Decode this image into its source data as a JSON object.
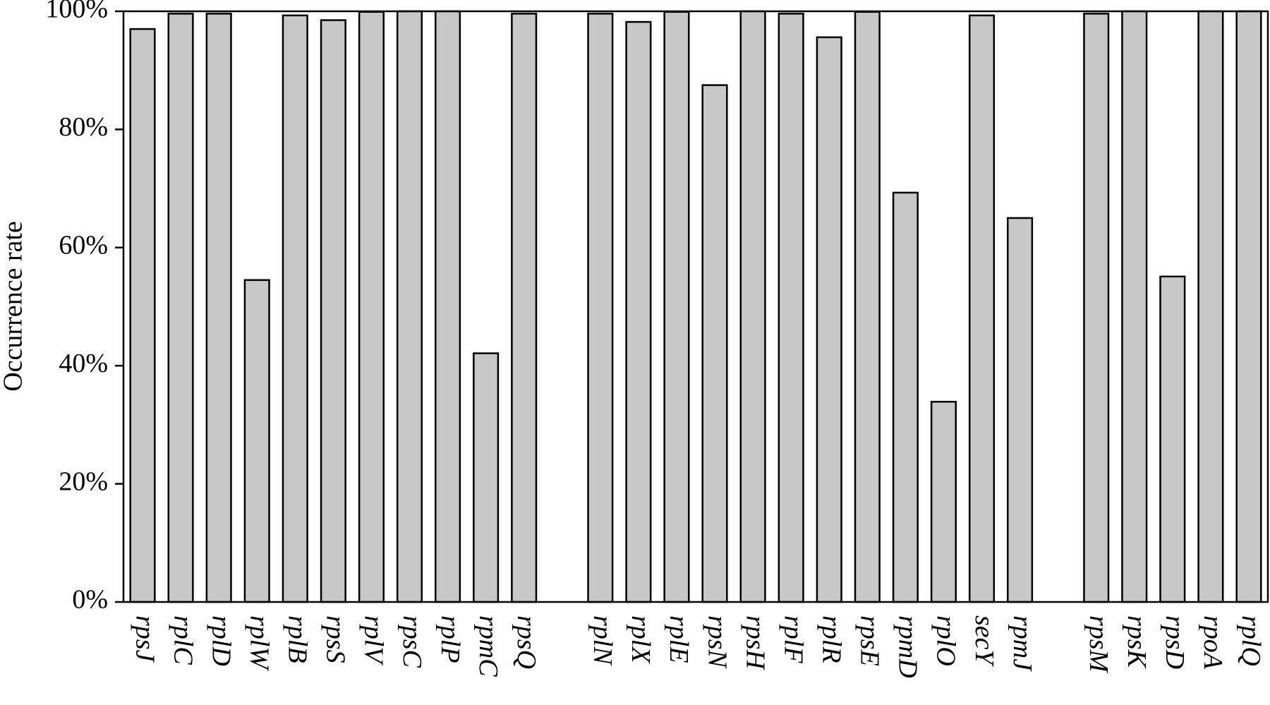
{
  "chart_data": {
    "type": "bar",
    "ylabel": "Occurrence rate",
    "categories": [
      "rpsJ",
      "rplC",
      "rplD",
      "rplW",
      "rplB",
      "rpsS",
      "rplV",
      "rpsC",
      "rplP",
      "rpmC",
      "rpsQ",
      null,
      "rplN",
      "rplX",
      "rplE",
      "rpsN",
      "rpsH",
      "rplF",
      "rplR",
      "rpsE",
      "rpmD",
      "rplO",
      "secY",
      "rpmJ",
      null,
      "rpsM",
      "rpsK",
      "rpsD",
      "rpoA",
      "rplQ"
    ],
    "values": [
      97.0,
      99.6,
      99.6,
      54.5,
      99.3,
      98.5,
      99.9,
      100,
      100,
      42.1,
      99.6,
      null,
      99.6,
      98.2,
      99.9,
      87.5,
      100,
      99.6,
      95.6,
      99.9,
      69.3,
      33.9,
      99.3,
      65.0,
      null,
      99.6,
      100,
      55.1,
      100,
      100
    ],
    "color": "#c8c8c8",
    "ylim": [
      0,
      100
    ],
    "yticks": [
      {
        "value": 0,
        "label": "0%"
      },
      {
        "value": 20,
        "label": "20%"
      },
      {
        "value": 40,
        "label": "40%"
      },
      {
        "value": 60,
        "label": "60%"
      },
      {
        "value": 80,
        "label": "80%"
      },
      {
        "value": 100,
        "label": "100%"
      }
    ]
  }
}
